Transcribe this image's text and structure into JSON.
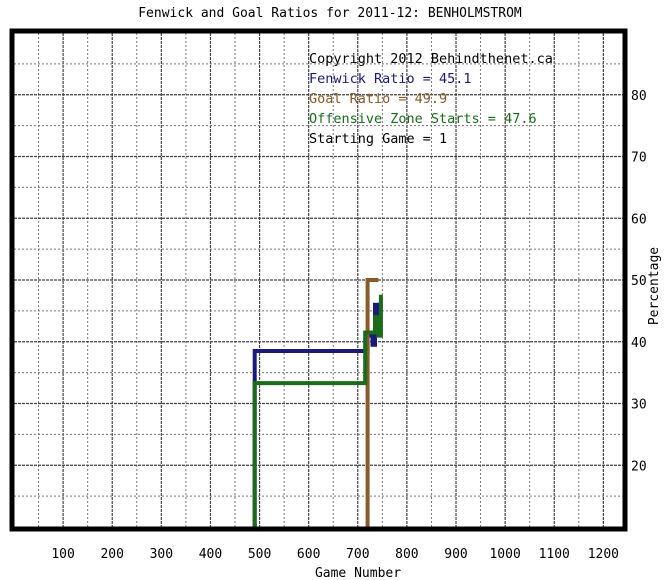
{
  "chart_data": {
    "type": "line",
    "title": "Fenwick and Goal Ratios for 2011-12: BENHOLMSTROM",
    "xlabel": "Game Number",
    "ylabel": "Percentage",
    "xlim": [
      0,
      1240
    ],
    "ylim": [
      10,
      90
    ],
    "x_ticks": [
      100,
      200,
      300,
      400,
      500,
      600,
      700,
      800,
      900,
      1000,
      1100,
      1200
    ],
    "y_ticks": [
      20,
      30,
      40,
      50,
      60,
      70,
      80
    ],
    "grid": true,
    "legend_position": "top-right",
    "annotations": [
      {
        "text": "Copyright 2012 Behindthenet.ca",
        "color": "#000000"
      },
      {
        "text": "Fenwick Ratio = 45.1",
        "color": "#1a1a7a"
      },
      {
        "text": "Goal Ratio = 49.9",
        "color": "#8b5a2b"
      },
      {
        "text": "Offensive Zone Starts = 47.6",
        "color": "#1a6b1a"
      },
      {
        "text": "Starting Game = 1",
        "color": "#000000"
      }
    ],
    "series": [
      {
        "name": "Fenwick Ratio",
        "color": "#1a1a7a",
        "points": [
          [
            490,
            10
          ],
          [
            490,
            38.5
          ],
          [
            720,
            38.5
          ],
          [
            720,
            41
          ],
          [
            730,
            41
          ],
          [
            730,
            39.5
          ],
          [
            735,
            39.5
          ],
          [
            735,
            46
          ],
          [
            740,
            46
          ],
          [
            740,
            43
          ],
          [
            745,
            43
          ]
        ]
      },
      {
        "name": "Goal Ratio",
        "color": "#8b5a2b",
        "points": [
          [
            720,
            10
          ],
          [
            720,
            50
          ],
          [
            742,
            50
          ]
        ]
      },
      {
        "name": "Offensive Zone Starts",
        "color": "#1a6b1a",
        "points": [
          [
            490,
            10
          ],
          [
            490,
            33.3
          ],
          [
            715,
            33.3
          ],
          [
            715,
            41.5
          ],
          [
            735,
            41.5
          ],
          [
            735,
            44
          ],
          [
            742,
            44
          ],
          [
            742,
            41
          ],
          [
            747,
            41
          ],
          [
            747,
            47.6
          ]
        ]
      }
    ]
  }
}
